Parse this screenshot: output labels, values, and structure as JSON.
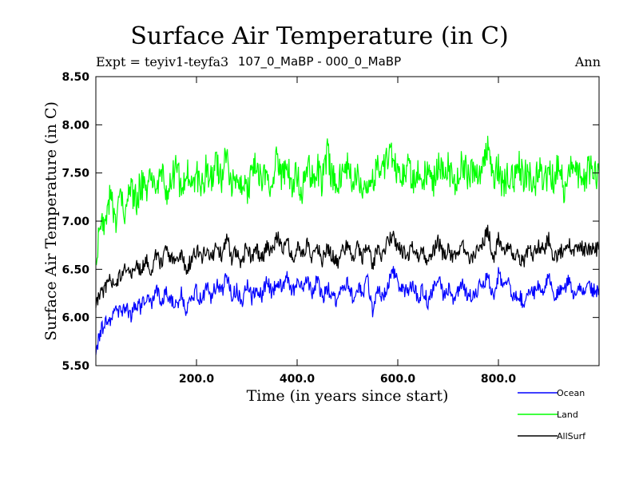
{
  "chart_data": {
    "type": "line",
    "title": "Surface Air Temperature (in C)",
    "subtitle_left": "Expt = teyiv1-teyfa3",
    "subtitle_center": "107_0_MaBP - 000_0_MaBP",
    "subtitle_right": "Ann",
    "xlabel": "Time (in years since start)",
    "ylabel": "Surface Air Temperature (in C)",
    "xlim": [
      0,
      1000
    ],
    "ylim": [
      5.5,
      8.5
    ],
    "xticks": [
      200,
      400,
      600,
      800
    ],
    "xtick_labels": [
      "200.0",
      "400.0",
      "600.0",
      "800.0"
    ],
    "yticks": [
      5.5,
      6.0,
      6.5,
      7.0,
      7.5,
      8.0,
      8.5
    ],
    "ytick_labels": [
      "5.50",
      "6.00",
      "6.50",
      "7.00",
      "7.50",
      "8.00",
      "8.50"
    ],
    "legend_position": "bottom-right, below plot",
    "series": [
      {
        "name": "Ocean",
        "color": "#0000ff",
        "x": [
          0,
          10,
          20,
          30,
          40,
          50,
          60,
          70,
          80,
          90,
          100,
          110,
          120,
          130,
          140,
          150,
          160,
          170,
          180,
          190,
          200,
          210,
          220,
          230,
          240,
          250,
          260,
          270,
          280,
          290,
          300,
          310,
          320,
          330,
          340,
          350,
          360,
          370,
          380,
          390,
          400,
          410,
          420,
          430,
          440,
          450,
          460,
          470,
          480,
          490,
          500,
          510,
          520,
          530,
          540,
          550,
          560,
          570,
          580,
          590,
          600,
          610,
          620,
          630,
          640,
          650,
          660,
          670,
          680,
          690,
          700,
          710,
          720,
          730,
          740,
          750,
          760,
          770,
          780,
          790,
          800,
          810,
          820,
          830,
          840,
          850,
          860,
          870,
          880,
          890,
          900,
          910,
          920,
          930,
          940,
          950,
          960,
          970,
          980,
          990,
          1000
        ],
        "values": [
          5.68,
          5.85,
          6.0,
          5.95,
          6.08,
          6.05,
          6.12,
          6.02,
          6.15,
          6.1,
          6.2,
          6.12,
          6.3,
          6.15,
          6.25,
          6.2,
          6.1,
          6.25,
          6.05,
          6.2,
          6.28,
          6.15,
          6.32,
          6.2,
          6.35,
          6.25,
          6.45,
          6.2,
          6.3,
          6.15,
          6.35,
          6.2,
          6.3,
          6.22,
          6.38,
          6.25,
          6.4,
          6.3,
          6.45,
          6.25,
          6.35,
          6.3,
          6.4,
          6.25,
          6.38,
          6.2,
          6.3,
          6.25,
          6.15,
          6.3,
          6.35,
          6.2,
          6.3,
          6.25,
          6.38,
          6.05,
          6.3,
          6.2,
          6.35,
          6.5,
          6.35,
          6.3,
          6.25,
          6.35,
          6.2,
          6.3,
          6.15,
          6.28,
          6.4,
          6.25,
          6.3,
          6.2,
          6.28,
          6.35,
          6.2,
          6.25,
          6.3,
          6.38,
          6.4,
          6.2,
          6.45,
          6.3,
          6.35,
          6.2,
          6.25,
          6.15,
          6.3,
          6.25,
          6.35,
          6.3,
          6.45,
          6.2,
          6.28,
          6.3,
          6.4,
          6.25,
          6.35,
          6.3,
          6.3,
          6.28,
          6.3
        ]
      },
      {
        "name": "Land",
        "color": "#00ff00",
        "x": [
          0,
          10,
          20,
          30,
          40,
          50,
          60,
          70,
          80,
          90,
          100,
          110,
          120,
          130,
          140,
          150,
          160,
          170,
          180,
          190,
          200,
          210,
          220,
          230,
          240,
          250,
          260,
          270,
          280,
          290,
          300,
          310,
          320,
          330,
          340,
          350,
          360,
          370,
          380,
          390,
          400,
          410,
          420,
          430,
          440,
          450,
          460,
          470,
          480,
          490,
          500,
          510,
          520,
          530,
          540,
          550,
          560,
          570,
          580,
          590,
          600,
          610,
          620,
          630,
          640,
          650,
          660,
          670,
          680,
          690,
          700,
          710,
          720,
          730,
          740,
          750,
          760,
          770,
          780,
          790,
          800,
          810,
          820,
          830,
          840,
          850,
          860,
          870,
          880,
          890,
          900,
          910,
          920,
          930,
          940,
          950,
          960,
          970,
          980,
          990,
          1000
        ],
        "values": [
          6.7,
          6.9,
          7.1,
          7.3,
          7.0,
          7.2,
          7.1,
          7.35,
          7.2,
          7.4,
          7.3,
          7.45,
          7.2,
          7.5,
          7.3,
          7.4,
          7.6,
          7.3,
          7.5,
          7.4,
          7.5,
          7.35,
          7.55,
          7.4,
          7.6,
          7.45,
          7.7,
          7.35,
          7.5,
          7.4,
          7.3,
          7.45,
          7.6,
          7.4,
          7.5,
          7.35,
          7.65,
          7.45,
          7.55,
          7.4,
          7.5,
          7.3,
          7.6,
          7.45,
          7.55,
          7.4,
          7.7,
          7.45,
          7.35,
          7.5,
          7.6,
          7.4,
          7.55,
          7.3,
          7.45,
          7.4,
          7.6,
          7.5,
          7.65,
          7.7,
          7.5,
          7.45,
          7.6,
          7.4,
          7.55,
          7.45,
          7.5,
          7.35,
          7.6,
          7.45,
          7.55,
          7.4,
          7.5,
          7.6,
          7.45,
          7.55,
          7.4,
          7.7,
          7.8,
          7.45,
          7.55,
          7.35,
          7.5,
          7.4,
          7.6,
          7.45,
          7.5,
          7.35,
          7.55,
          7.4,
          7.5,
          7.45,
          7.6,
          7.35,
          7.55,
          7.45,
          7.5,
          7.4,
          7.55,
          7.5,
          7.5
        ]
      },
      {
        "name": "AllSurf",
        "color": "#000000",
        "x": [
          0,
          10,
          20,
          30,
          40,
          50,
          60,
          70,
          80,
          90,
          100,
          110,
          120,
          130,
          140,
          150,
          160,
          170,
          180,
          190,
          200,
          210,
          220,
          230,
          240,
          250,
          260,
          270,
          280,
          290,
          300,
          310,
          320,
          330,
          340,
          350,
          360,
          370,
          380,
          390,
          400,
          410,
          420,
          430,
          440,
          450,
          460,
          470,
          480,
          490,
          500,
          510,
          520,
          530,
          540,
          550,
          560,
          570,
          580,
          590,
          600,
          610,
          620,
          630,
          640,
          650,
          660,
          670,
          680,
          690,
          700,
          710,
          720,
          730,
          740,
          750,
          760,
          770,
          780,
          790,
          800,
          810,
          820,
          830,
          840,
          850,
          860,
          870,
          880,
          890,
          900,
          910,
          920,
          930,
          940,
          950,
          960,
          970,
          980,
          990,
          1000
        ],
        "values": [
          6.15,
          6.25,
          6.3,
          6.4,
          6.35,
          6.45,
          6.5,
          6.42,
          6.55,
          6.5,
          6.6,
          6.5,
          6.65,
          6.55,
          6.7,
          6.6,
          6.55,
          6.65,
          6.5,
          6.6,
          6.7,
          6.6,
          6.72,
          6.6,
          6.75,
          6.65,
          6.85,
          6.6,
          6.7,
          6.55,
          6.75,
          6.62,
          6.7,
          6.6,
          6.75,
          6.65,
          6.85,
          6.7,
          6.8,
          6.6,
          6.72,
          6.65,
          6.78,
          6.62,
          6.75,
          6.6,
          6.7,
          6.65,
          6.55,
          6.7,
          6.75,
          6.6,
          6.72,
          6.62,
          6.78,
          6.55,
          6.7,
          6.62,
          6.8,
          6.85,
          6.72,
          6.68,
          6.65,
          6.75,
          6.6,
          6.7,
          6.55,
          6.68,
          6.8,
          6.65,
          6.7,
          6.6,
          6.68,
          6.75,
          6.6,
          6.65,
          6.7,
          6.8,
          6.9,
          6.6,
          6.82,
          6.7,
          6.75,
          6.6,
          6.65,
          6.55,
          6.7,
          6.65,
          6.75,
          6.7,
          6.82,
          6.6,
          6.68,
          6.7,
          6.78,
          6.65,
          6.75,
          6.7,
          6.72,
          6.7,
          6.72
        ]
      }
    ]
  }
}
